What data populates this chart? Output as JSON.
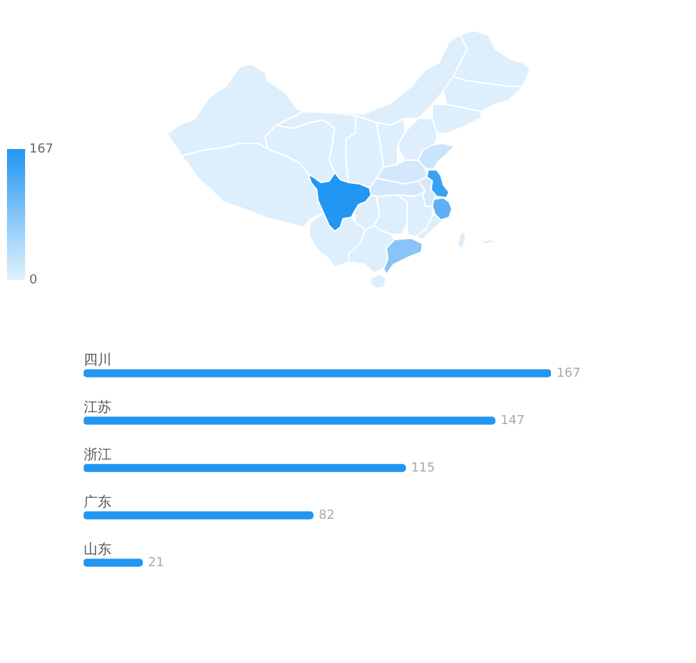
{
  "chart_data": {
    "type": "bar",
    "orientation": "horizontal",
    "categories": [
      "四川",
      "江苏",
      "浙江",
      "广东",
      "山东"
    ],
    "values": [
      167,
      147,
      115,
      82,
      21
    ],
    "color": "#2196f3",
    "data_labels": true,
    "tick_labels": "y",
    "clim": [
      0,
      167
    ],
    "cticks": [
      0,
      167
    ]
  }
}
